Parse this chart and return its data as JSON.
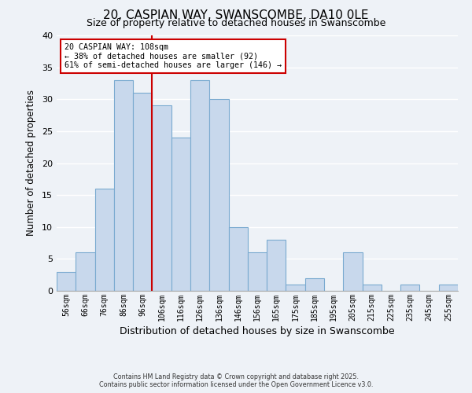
{
  "title": "20, CASPIAN WAY, SWANSCOMBE, DA10 0LE",
  "subtitle": "Size of property relative to detached houses in Swanscombe",
  "xlabel": "Distribution of detached houses by size in Swanscombe",
  "ylabel": "Number of detached properties",
  "bar_labels": [
    "56sqm",
    "66sqm",
    "76sqm",
    "86sqm",
    "96sqm",
    "106sqm",
    "116sqm",
    "126sqm",
    "136sqm",
    "146sqm",
    "156sqm",
    "165sqm",
    "175sqm",
    "185sqm",
    "195sqm",
    "205sqm",
    "215sqm",
    "225sqm",
    "235sqm",
    "245sqm",
    "255sqm"
  ],
  "bar_values": [
    3,
    6,
    16,
    33,
    31,
    29,
    24,
    33,
    30,
    10,
    6,
    8,
    1,
    2,
    0,
    6,
    1,
    0,
    1,
    0,
    1
  ],
  "bar_color": "#c8d8ec",
  "bar_edge_color": "#7aaad0",
  "ylim": [
    0,
    40
  ],
  "yticks": [
    0,
    5,
    10,
    15,
    20,
    25,
    30,
    35,
    40
  ],
  "property_line_color": "#cc0000",
  "property_line_index": 5,
  "annotation_title": "20 CASPIAN WAY: 108sqm",
  "annotation_line1": "← 38% of detached houses are smaller (92)",
  "annotation_line2": "61% of semi-detached houses are larger (146) →",
  "annotation_box_color": "#ffffff",
  "annotation_box_edge": "#cc0000",
  "footer1": "Contains HM Land Registry data © Crown copyright and database right 2025.",
  "footer2": "Contains public sector information licensed under the Open Government Licence v3.0.",
  "background_color": "#eef2f7",
  "grid_color": "#ffffff",
  "plot_bg_color": "#eef2f7"
}
